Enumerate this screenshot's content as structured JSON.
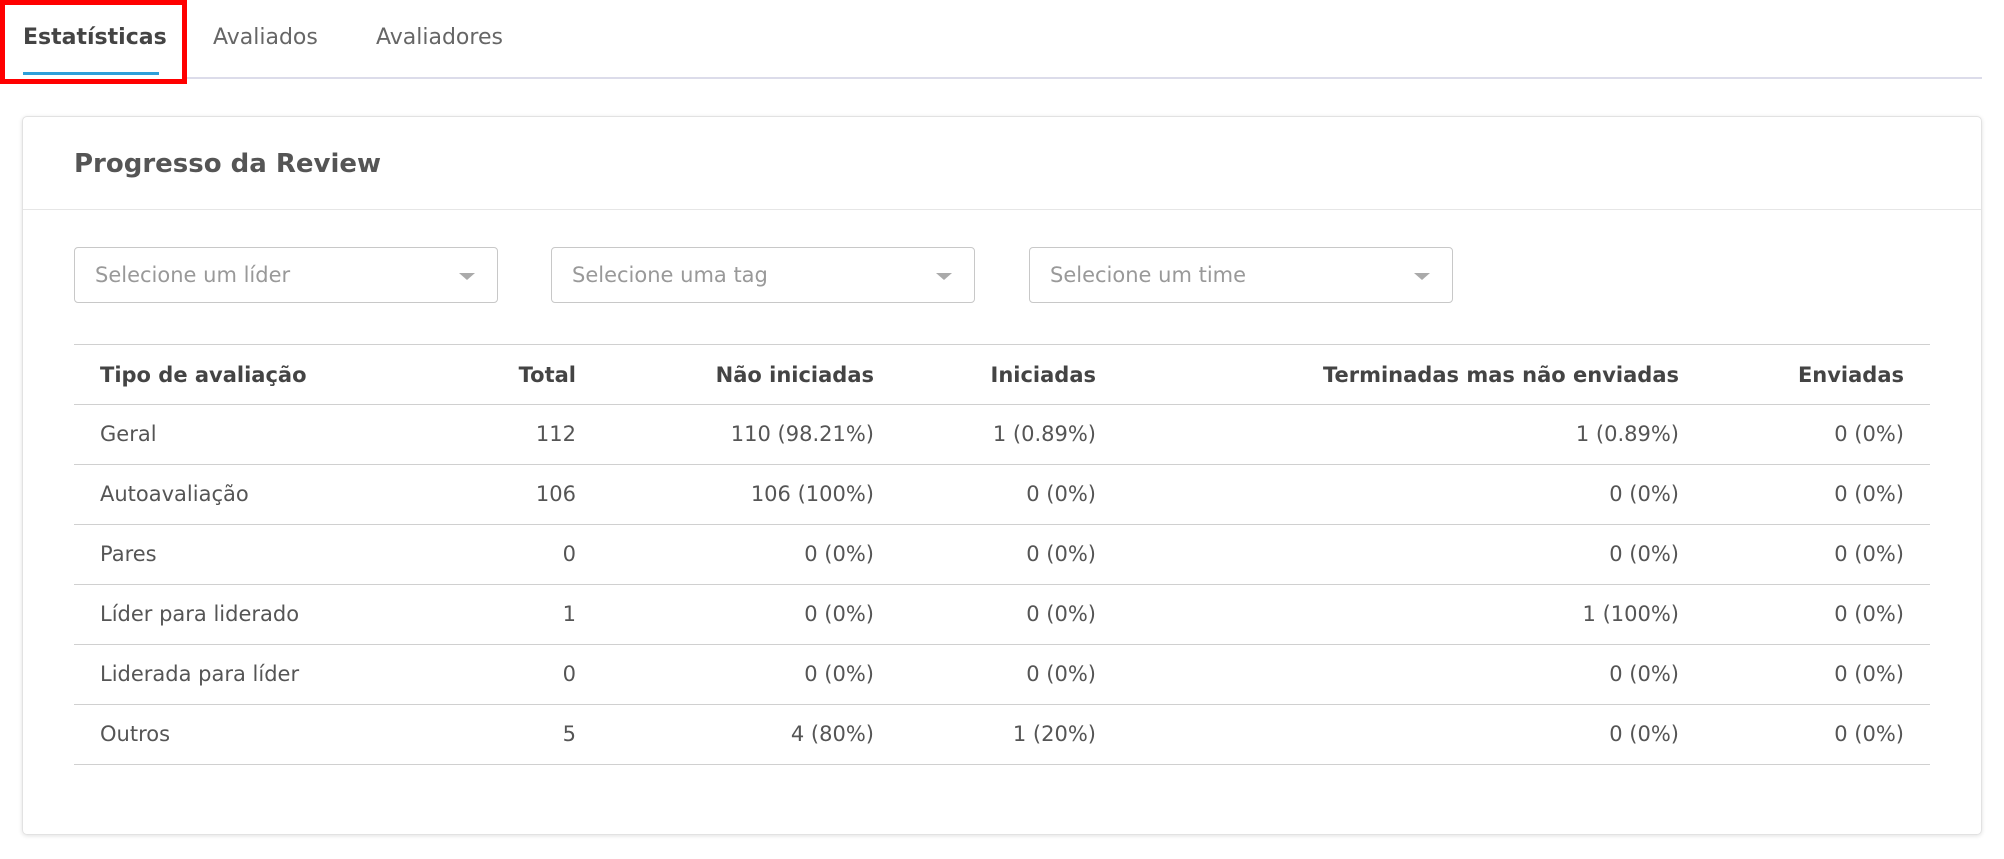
{
  "tabs": [
    "Estatísticas",
    "Avaliados",
    "Avaliadores"
  ],
  "card": {
    "title": "Progresso da Review",
    "filters": [
      "Selecione um líder",
      "Selecione uma tag",
      "Selecione um time"
    ],
    "table": {
      "headers": [
        "Tipo de avaliação",
        "Total",
        "Não iniciadas",
        "Iniciadas",
        "Terminadas mas não enviadas",
        "Enviadas"
      ],
      "rows": [
        [
          "Geral",
          "112",
          "110 (98.21%)",
          "1 (0.89%)",
          "1 (0.89%)",
          "0 (0%)"
        ],
        [
          "Autoavaliação",
          "106",
          "106 (100%)",
          "0 (0%)",
          "0 (0%)",
          "0 (0%)"
        ],
        [
          "Pares",
          "0",
          "0 (0%)",
          "0 (0%)",
          "0 (0%)",
          "0 (0%)"
        ],
        [
          "Líder para liderado",
          "1",
          "0 (0%)",
          "0 (0%)",
          "1 (100%)",
          "0 (0%)"
        ],
        [
          "Liderada para líder",
          "0",
          "0 (0%)",
          "0 (0%)",
          "0 (0%)",
          "0 (0%)"
        ],
        [
          "Outros",
          "5",
          "4 (80%)",
          "1 (20%)",
          "0 (0%)",
          "0 (0%)"
        ]
      ]
    }
  }
}
